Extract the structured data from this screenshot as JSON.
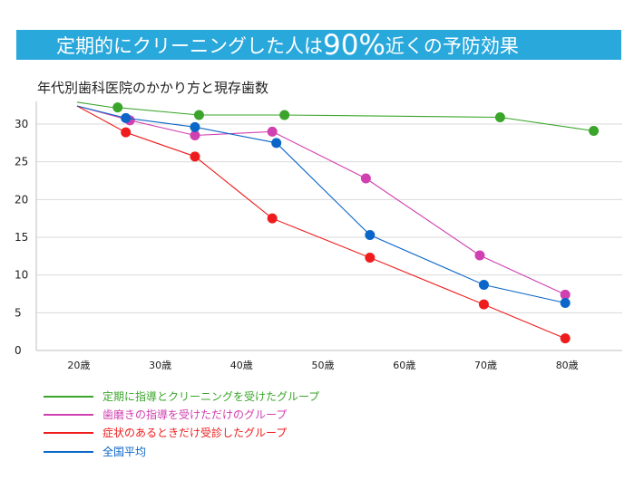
{
  "banner": {
    "prefix": "定期的にクリーニングした人は",
    "highlight": "90%",
    "suffix": "近くの予防効果",
    "color": "#29a8dc"
  },
  "chart_data": {
    "type": "line",
    "title": "年代別歯科医院のかかり方と現存歯数",
    "xlabel": "",
    "ylabel": "",
    "ylim": [
      0,
      33
    ],
    "xlim": [
      15,
      87
    ],
    "yticks": [
      0,
      5,
      10,
      15,
      20,
      25,
      30
    ],
    "xticks": [
      "20歳",
      "30歳",
      "40歳",
      "50歳",
      "60歳",
      "70歳",
      "80歳"
    ],
    "grid": true,
    "legend_position": "bottom",
    "series": [
      {
        "name": "定期に指導とクリーニングを受けたグループ",
        "color": "#3aa52a",
        "line": [
          [
            20,
            32.9
          ],
          [
            25,
            32.1
          ]
        ],
        "points": [
          [
            25,
            32.2
          ],
          [
            35,
            31.2
          ],
          [
            45.5,
            31.2
          ],
          [
            72,
            30.9
          ],
          [
            83.5,
            29.1
          ]
        ]
      },
      {
        "name": "歯磨きの指導を受けただけのグループ",
        "color": "#d040b0",
        "line": [
          [
            20,
            32.4
          ]
        ],
        "points": [
          [
            26.5,
            30.5
          ],
          [
            34.5,
            28.5
          ],
          [
            44,
            29.0
          ],
          [
            55.5,
            22.8
          ],
          [
            69.5,
            12.6
          ],
          [
            80,
            7.4
          ]
        ]
      },
      {
        "name": "症状のあるときだけ受診したグループ",
        "color": "#ee1c1c",
        "line": [
          [
            20,
            32.4
          ]
        ],
        "points": [
          [
            26,
            28.9
          ],
          [
            34.5,
            25.7
          ],
          [
            44,
            17.5
          ],
          [
            56,
            12.3
          ],
          [
            70,
            6.1
          ],
          [
            80,
            1.6
          ]
        ]
      },
      {
        "name": "全国平均",
        "color": "#0a66c8",
        "line": [
          [
            20,
            32.4
          ]
        ],
        "points": [
          [
            26,
            30.8
          ],
          [
            34.5,
            29.6
          ],
          [
            44.5,
            27.5
          ],
          [
            56,
            15.3
          ],
          [
            70,
            8.7
          ],
          [
            80,
            6.3
          ]
        ]
      }
    ]
  }
}
